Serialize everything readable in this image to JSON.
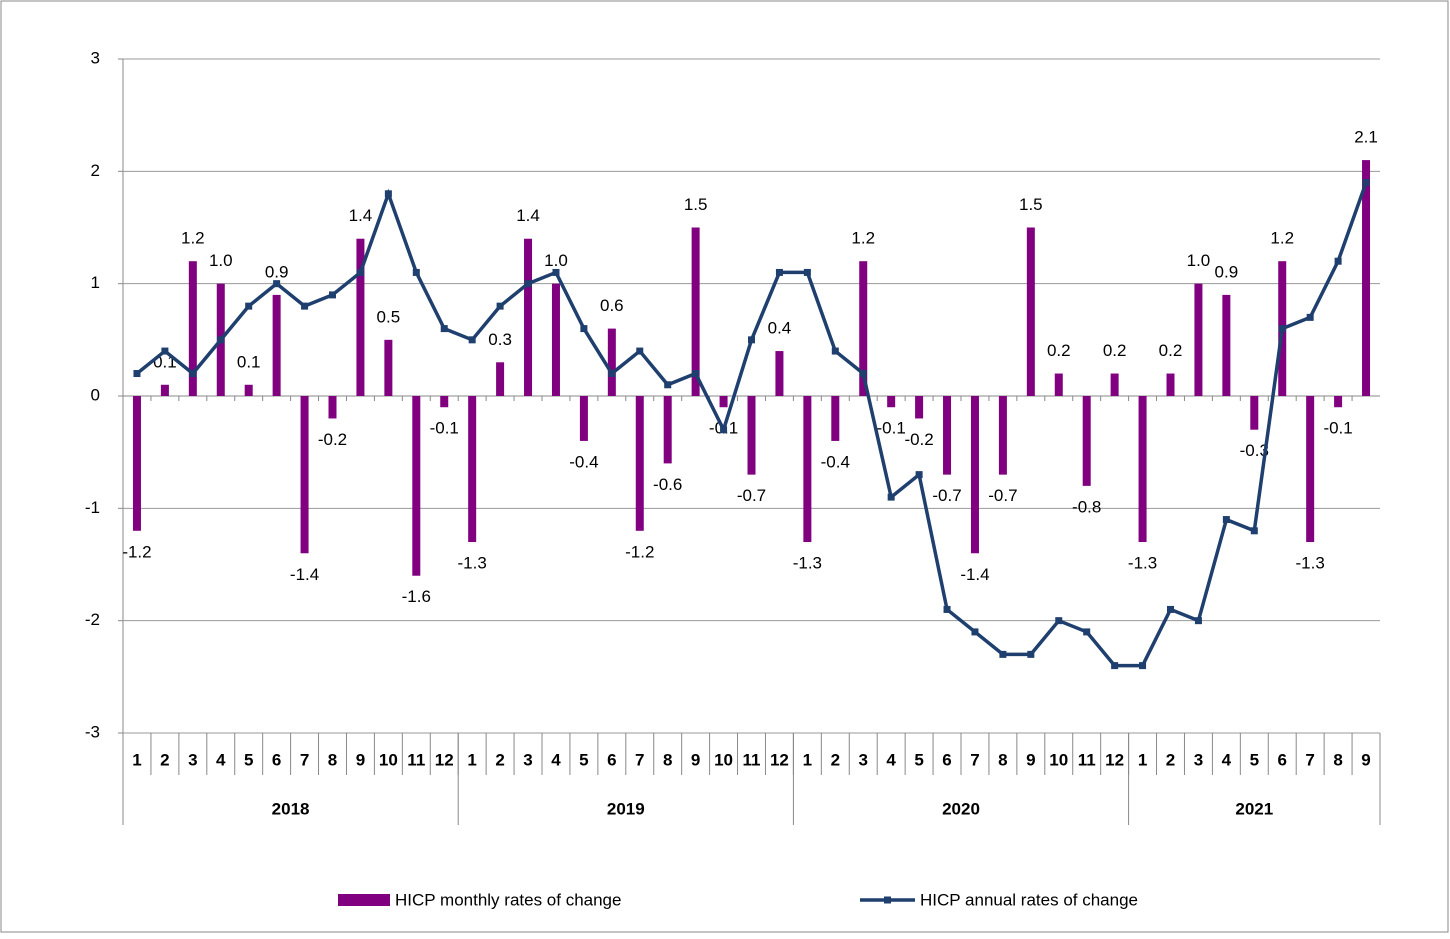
{
  "chart_data": {
    "type": "bar-line",
    "categories": [
      "1",
      "2",
      "3",
      "4",
      "5",
      "6",
      "7",
      "8",
      "9",
      "10",
      "11",
      "12",
      "1",
      "2",
      "3",
      "4",
      "5",
      "6",
      "7",
      "8",
      "9",
      "10",
      "11",
      "12",
      "1",
      "2",
      "3",
      "4",
      "5",
      "6",
      "7",
      "8",
      "9",
      "10",
      "11",
      "12",
      "1",
      "2",
      "3",
      "4",
      "5",
      "6",
      "7",
      "8",
      "9"
    ],
    "category_groups": [
      "2018",
      "2019",
      "2020",
      "2021"
    ],
    "series": [
      {
        "name": "HICP monthly rates of change",
        "type": "bar",
        "color": "#800080",
        "values": [
          -1.2,
          0.1,
          1.2,
          1.0,
          0.1,
          0.9,
          -1.4,
          -0.2,
          1.4,
          0.5,
          -1.6,
          -0.1,
          -1.3,
          0.3,
          1.4,
          1.0,
          -0.4,
          0.6,
          -1.2,
          -0.6,
          1.5,
          -0.1,
          -0.7,
          0.4,
          -1.3,
          -0.4,
          1.2,
          -0.1,
          -0.2,
          -0.7,
          -1.4,
          -0.7,
          1.5,
          0.2,
          -0.8,
          0.2,
          -1.3,
          0.2,
          1.0,
          0.9,
          -0.3,
          1.2,
          -1.3,
          -0.1,
          2.1
        ],
        "value_labels": [
          "-1.2",
          "0.1",
          "1.2",
          "1.0",
          "0.1",
          "0.9",
          "-1.4",
          "-0.2",
          "1.4",
          "0.5",
          "-1.6",
          "-0.1",
          "-1.3",
          "0.3",
          "1.4",
          "1.0",
          "-0.4",
          "0.6",
          "-1.2",
          "-0.6",
          "1.5",
          "-0.1",
          "-0.7",
          "0.4",
          "-1.3",
          "-0.4",
          "1.2",
          "-0.1",
          "-0.2",
          "-0.7",
          "-1.4",
          "-0.7",
          "1.5",
          "0.2",
          "-0.8",
          "0.2",
          "-1.3",
          "0.2",
          "1.0",
          "0.9",
          "-0.3",
          "1.2",
          "-1.3",
          "-0.1",
          "2.1"
        ]
      },
      {
        "name": "HICP annual rates of change",
        "type": "line",
        "color": "#1f3f6e",
        "values": [
          0.2,
          0.4,
          0.2,
          0.5,
          0.8,
          1.0,
          0.8,
          0.9,
          1.1,
          1.8,
          1.1,
          0.6,
          0.5,
          0.8,
          1.0,
          1.1,
          0.6,
          0.2,
          0.4,
          0.1,
          0.2,
          -0.3,
          0.5,
          1.1,
          1.1,
          0.4,
          0.2,
          -0.9,
          -0.7,
          -1.9,
          -2.1,
          -2.3,
          -2.3,
          -2.0,
          -2.1,
          -2.4,
          -2.4,
          -1.9,
          -2.0,
          -1.1,
          -1.2,
          0.6,
          0.7,
          1.2,
          1.9
        ]
      }
    ],
    "ylim": [
      -3,
      3
    ],
    "yticks": [
      -3,
      -2,
      -1,
      0,
      1,
      2,
      3
    ],
    "grid": true,
    "legend": "bottom"
  }
}
